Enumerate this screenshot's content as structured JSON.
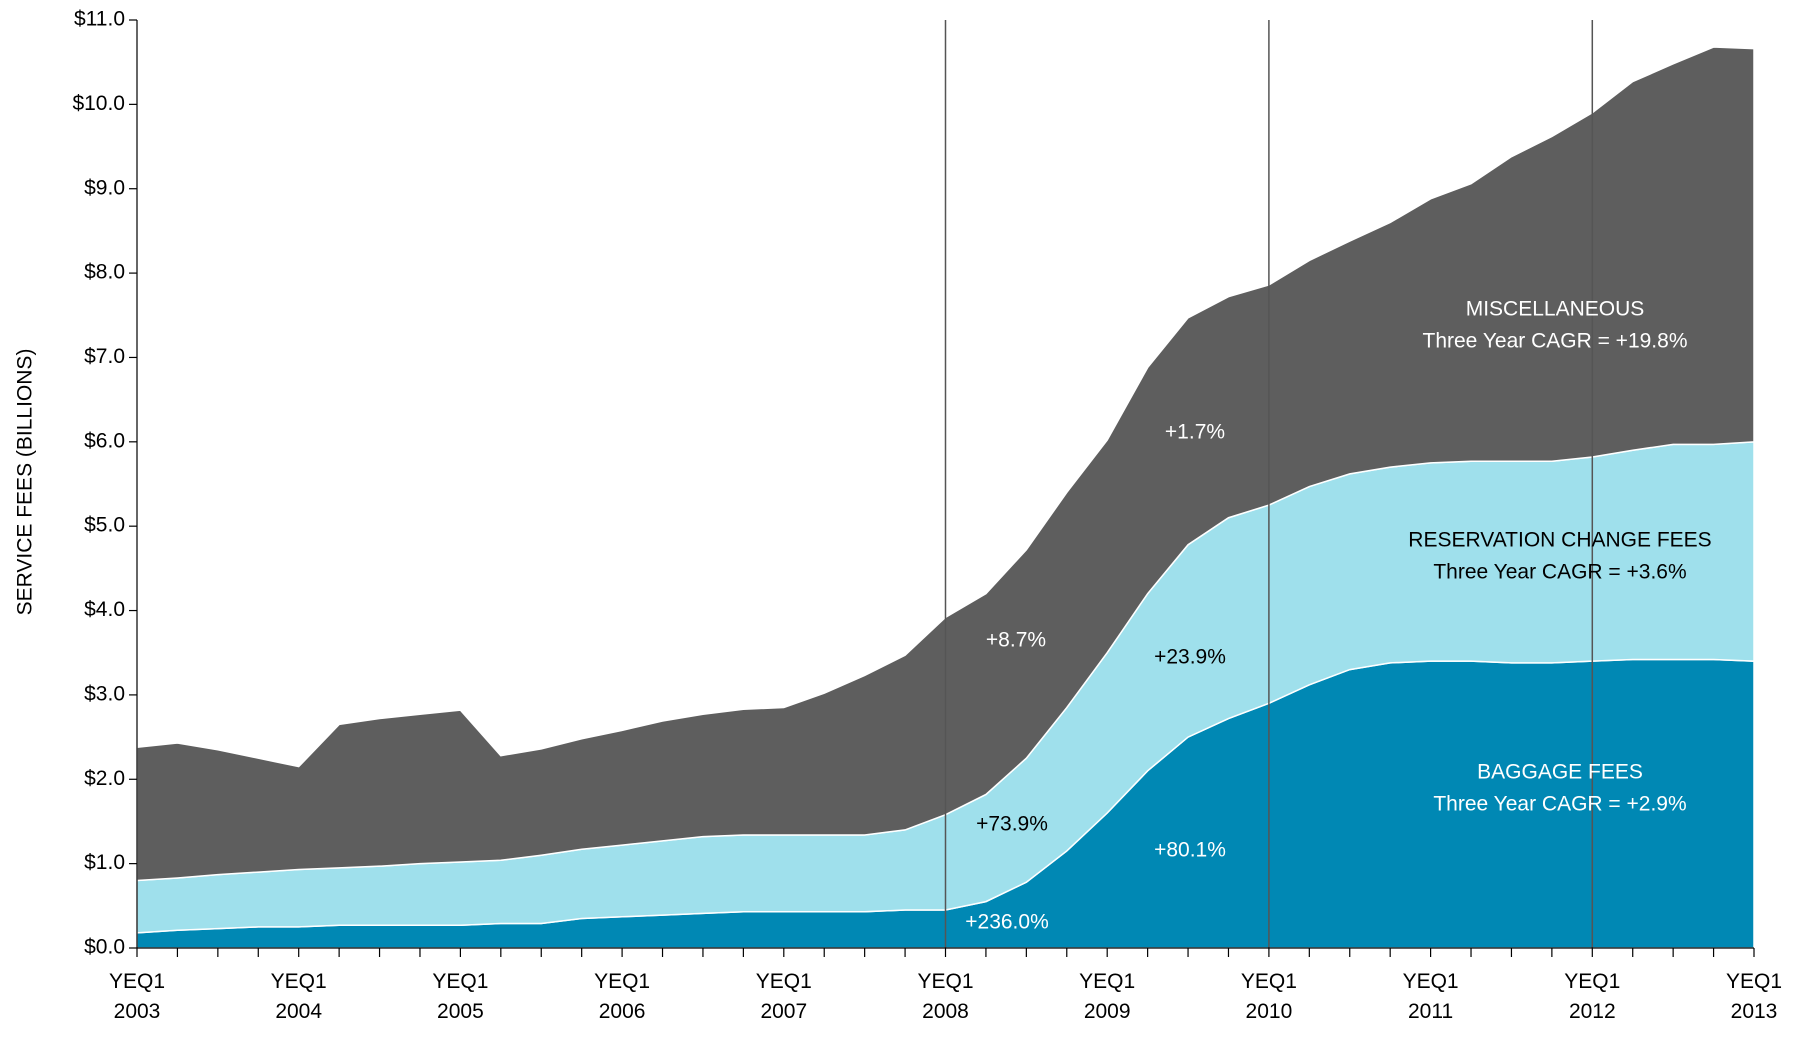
{
  "chart_data": {
    "type": "stacked_area",
    "y_label": "SERVICE FEES (BILLIONS)",
    "categories": [
      "YEQ1 2003",
      null,
      null,
      null,
      "YEQ1 2004",
      null,
      null,
      null,
      "YEQ1 2005",
      null,
      null,
      null,
      "YEQ1 2006",
      null,
      null,
      null,
      "YEQ1 2007",
      null,
      null,
      null,
      "YEQ1 2008",
      null,
      null,
      null,
      "YEQ1 2009",
      null,
      null,
      null,
      "YEQ1 2010",
      null,
      null,
      null,
      "YEQ1 2011",
      null,
      null,
      null,
      "YEQ1 2012",
      null,
      null,
      null,
      "YEQ1 2013"
    ],
    "series": [
      {
        "name": "BAGGAGE FEES",
        "color": "#0088b4",
        "values": [
          0.18,
          0.21,
          0.23,
          0.25,
          0.25,
          0.27,
          0.27,
          0.27,
          0.27,
          0.29,
          0.29,
          0.35,
          0.37,
          0.39,
          0.41,
          0.43,
          0.43,
          0.43,
          0.43,
          0.45,
          0.45,
          0.55,
          0.78,
          1.15,
          1.6,
          2.1,
          2.5,
          2.72,
          2.9,
          3.12,
          3.3,
          3.38,
          3.4,
          3.4,
          3.38,
          3.38,
          3.4,
          3.42,
          3.42,
          3.42,
          3.4
        ]
      },
      {
        "name": "RESERVATION CHANGE FEES",
        "color": "#9fe0ec",
        "values": [
          0.62,
          0.62,
          0.64,
          0.65,
          0.68,
          0.68,
          0.7,
          0.73,
          0.75,
          0.75,
          0.81,
          0.82,
          0.85,
          0.88,
          0.91,
          0.91,
          0.91,
          0.91,
          0.91,
          0.95,
          1.13,
          1.27,
          1.47,
          1.7,
          1.9,
          2.1,
          2.28,
          2.38,
          2.35,
          2.35,
          2.32,
          2.32,
          2.35,
          2.37,
          2.39,
          2.39,
          2.42,
          2.48,
          2.55,
          2.55,
          2.6
        ]
      },
      {
        "name": "MISCELLANEOUS",
        "color": "#5e5e5e",
        "values": [
          1.58,
          1.6,
          1.48,
          1.35,
          1.22,
          1.7,
          1.75,
          1.77,
          1.8,
          1.24,
          1.26,
          1.31,
          1.36,
          1.42,
          1.45,
          1.49,
          1.51,
          1.68,
          1.89,
          2.07,
          2.34,
          2.38,
          2.47,
          2.55,
          2.52,
          2.68,
          2.69,
          2.62,
          2.61,
          2.68,
          2.76,
          2.9,
          3.13,
          3.29,
          3.61,
          3.85,
          4.08,
          4.37,
          4.51,
          4.71,
          4.66
        ]
      }
    ],
    "ylim": [
      0,
      11
    ],
    "yticks": [
      {
        "value": 0,
        "label": "$0.0"
      },
      {
        "value": 1,
        "label": "$1.0"
      },
      {
        "value": 2,
        "label": "$2.0"
      },
      {
        "value": 3,
        "label": "$3.0"
      },
      {
        "value": 4,
        "label": "$4.0"
      },
      {
        "value": 5,
        "label": "$5.0"
      },
      {
        "value": 6,
        "label": "$6.0"
      },
      {
        "value": 7,
        "label": "$7.0"
      },
      {
        "value": 8,
        "label": "$8.0"
      },
      {
        "value": 9,
        "label": "$9.0"
      },
      {
        "value": 10,
        "label": "$10.0"
      },
      {
        "value": 11,
        "label": "$11.0"
      }
    ],
    "annotations": [
      "MISCELLANEOUS",
      "Three Year CAGR = +19.8%",
      "RESERVATION CHANGE FEES",
      "Three Year CAGR = +3.6%",
      "BAGGAGE FEES",
      "Three Year CAGR = +2.9%",
      "+8.7%",
      "+73.9%",
      "+236.0%",
      "+1.7%",
      "+23.9%",
      "+80.1%"
    ]
  }
}
